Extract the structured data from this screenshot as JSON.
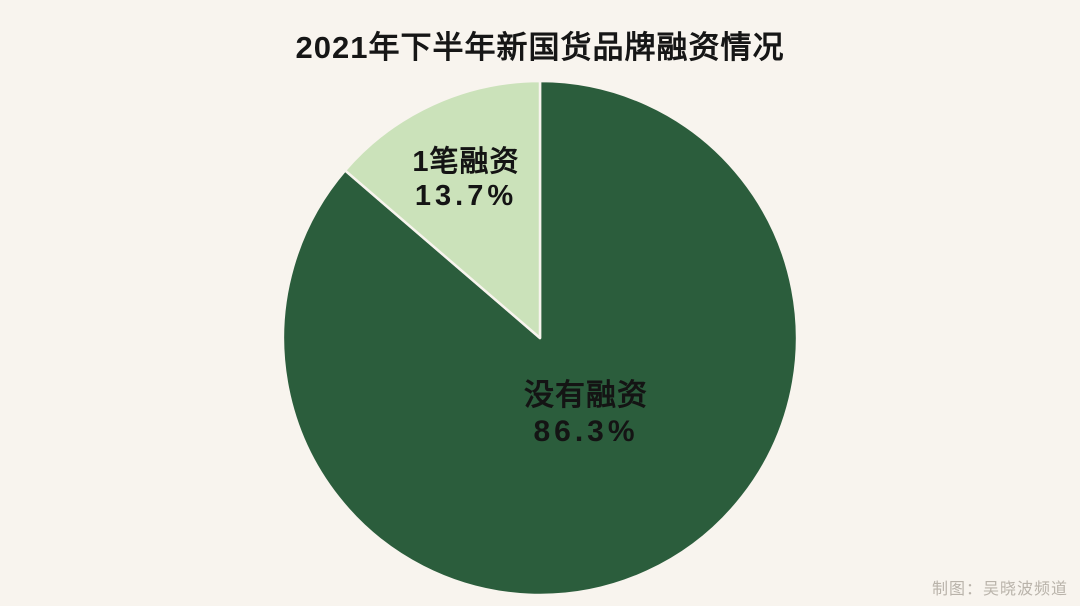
{
  "colors": {
    "background": "#f8f4ee",
    "slice_gap": "#f8f4ee",
    "dark_green": "#2b5d3c",
    "light_green": "#cbe2ba",
    "text_dark": "#161616",
    "credit_gray": "#b9b3aa"
  },
  "header": {
    "title": "2021年下半年新国货品牌融资情况"
  },
  "credit": {
    "text": "制图：吴晓波频道"
  },
  "chart_data": {
    "type": "pie",
    "title": "2021年下半年新国货品牌融资情况",
    "start_angle_deg": -90,
    "direction": "clockwise",
    "legend": "none",
    "labels_on_chart": true,
    "slices": [
      {
        "id": "no-financing",
        "label": "没有融资",
        "value": 86.3,
        "pct_label": "86.3%",
        "color": "#2b5d3c"
      },
      {
        "id": "one-financing",
        "label": "1笔融资",
        "value": 13.7,
        "pct_label": "13.7%",
        "color": "#cbe2ba"
      }
    ]
  }
}
